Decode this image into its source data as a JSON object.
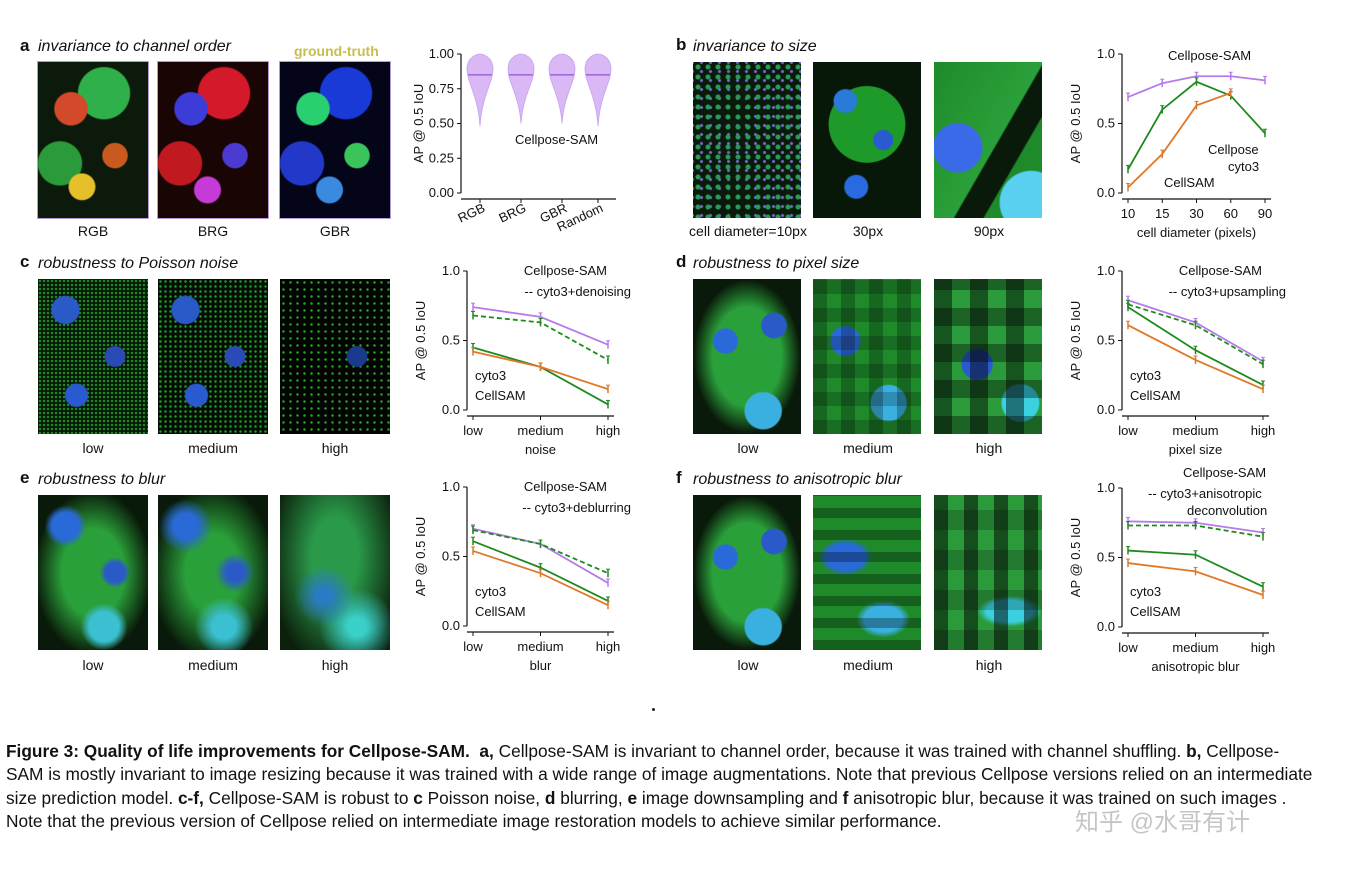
{
  "panels": {
    "a": {
      "letter": "a",
      "title": "invariance to channel order",
      "gt_label": "ground-truth",
      "image_labels": [
        "RGB",
        "BRG",
        "GBR"
      ]
    },
    "b": {
      "letter": "b",
      "title": "invariance to size",
      "image_labels": [
        "cell diameter=10px",
        "30px",
        "90px"
      ]
    },
    "c": {
      "letter": "c",
      "title": "robustness to Poisson noise",
      "image_labels": [
        "low",
        "medium",
        "high"
      ]
    },
    "d": {
      "letter": "d",
      "title": "robustness to pixel size",
      "image_labels": [
        "low",
        "medium",
        "high"
      ]
    },
    "e": {
      "letter": "e",
      "title": "robustness to blur",
      "image_labels": [
        "low",
        "medium",
        "high"
      ]
    },
    "f": {
      "letter": "f",
      "title": "robustness to anisotropic blur",
      "image_labels": [
        "low",
        "medium",
        "high"
      ]
    }
  },
  "colors": {
    "cellposesam": "#b57bea",
    "cyto3": "#1e8a1e",
    "cellsam": "#e0782a",
    "gt": "#c9bd4e"
  },
  "chart_data": [
    {
      "id": "a",
      "type": "violin",
      "ylabel": "AP @ 0.5 IoU",
      "ylim": [
        0,
        1
      ],
      "yticks": [
        "0.00",
        "0.25",
        "0.50",
        "0.75",
        "1.00"
      ],
      "categories": [
        "RGB",
        "BRG",
        "GBR",
        "Random"
      ],
      "series": [
        {
          "name": "Cellpose-SAM",
          "median": [
            0.85,
            0.85,
            0.85,
            0.85
          ],
          "min": [
            0.48,
            0.5,
            0.5,
            0.48
          ],
          "max": [
            1.0,
            1.0,
            1.0,
            1.0
          ]
        }
      ]
    },
    {
      "id": "b",
      "type": "line",
      "xlabel": "cell diameter (pixels)",
      "ylabel": "AP @ 0.5 IoU",
      "ylim": [
        0,
        1
      ],
      "yticks": [
        "0.0",
        "0.5",
        "1.0"
      ],
      "categories": [
        "10",
        "15",
        "30",
        "60",
        "90"
      ],
      "series": [
        {
          "name": "Cellpose-SAM",
          "key": "cellposesam",
          "values": [
            0.69,
            0.79,
            0.84,
            0.84,
            0.81
          ],
          "dashed": false
        },
        {
          "name": "Cellpose cyto3",
          "key": "cyto3",
          "values": [
            0.17,
            0.6,
            0.8,
            0.7,
            0.43
          ],
          "dashed": false
        },
        {
          "name": "CellSAM",
          "key": "cellsam",
          "values": [
            0.04,
            0.28,
            0.63,
            0.72,
            null
          ],
          "dashed": false
        }
      ]
    },
    {
      "id": "c",
      "type": "line",
      "xlabel": "noise",
      "ylabel": "AP @ 0.5 IoU",
      "ylim": [
        0,
        1
      ],
      "yticks": [
        "0.0",
        "0.5",
        "1.0"
      ],
      "categories": [
        "low",
        "medium",
        "high"
      ],
      "series": [
        {
          "name": "Cellpose-SAM",
          "key": "cellposesam",
          "values": [
            0.74,
            0.67,
            0.47
          ],
          "dashed": false
        },
        {
          "name": "-- cyto3+denoising",
          "key": "cyto3",
          "values": [
            0.68,
            0.63,
            0.36
          ],
          "dashed": true
        },
        {
          "name": "cyto3",
          "key": "cyto3",
          "values": [
            0.45,
            0.31,
            0.04
          ],
          "dashed": false
        },
        {
          "name": "CellSAM",
          "key": "cellsam",
          "values": [
            0.42,
            0.31,
            0.15
          ],
          "dashed": false
        }
      ]
    },
    {
      "id": "d",
      "type": "line",
      "xlabel": "pixel size",
      "ylabel": "AP @ 0.5 IoU",
      "ylim": [
        0,
        1
      ],
      "yticks": [
        "0.0",
        "0.5",
        "1.0"
      ],
      "categories": [
        "low",
        "medium",
        "high"
      ],
      "series": [
        {
          "name": "Cellpose-SAM",
          "key": "cellposesam",
          "values": [
            0.79,
            0.63,
            0.35
          ],
          "dashed": false
        },
        {
          "name": "-- cyto3+upsampling",
          "key": "cyto3",
          "values": [
            0.76,
            0.61,
            0.33
          ],
          "dashed": true
        },
        {
          "name": "cyto3",
          "key": "cyto3",
          "values": [
            0.74,
            0.43,
            0.18
          ],
          "dashed": false
        },
        {
          "name": "CellSAM",
          "key": "cellsam",
          "values": [
            0.61,
            0.36,
            0.15
          ],
          "dashed": false
        }
      ]
    },
    {
      "id": "e",
      "type": "line",
      "xlabel": "blur",
      "ylabel": "AP @ 0.5 IoU",
      "ylim": [
        0,
        1
      ],
      "yticks": [
        "0.0",
        "0.5",
        "1.0"
      ],
      "categories": [
        "low",
        "medium",
        "high"
      ],
      "series": [
        {
          "name": "Cellpose-SAM",
          "key": "cellposesam",
          "values": [
            0.7,
            0.59,
            0.31
          ],
          "dashed": false
        },
        {
          "name": "-- cyto3+deblurring",
          "key": "cyto3",
          "values": [
            0.69,
            0.59,
            0.38
          ],
          "dashed": true
        },
        {
          "name": "cyto3",
          "key": "cyto3",
          "values": [
            0.61,
            0.42,
            0.18
          ],
          "dashed": false
        },
        {
          "name": "CellSAM",
          "key": "cellsam",
          "values": [
            0.54,
            0.38,
            0.15
          ],
          "dashed": false
        }
      ]
    },
    {
      "id": "f",
      "type": "line",
      "xlabel": "anisotropic blur",
      "ylabel": "AP @ 0.5 IoU",
      "ylim": [
        0,
        1
      ],
      "yticks": [
        "0.0",
        "0.5",
        "1.0"
      ],
      "categories": [
        "low",
        "medium",
        "high"
      ],
      "series": [
        {
          "name": "Cellpose-SAM",
          "key": "cellposesam",
          "values": [
            0.76,
            0.75,
            0.68
          ],
          "dashed": false
        },
        {
          "name": "-- cyto3+anisotropic deconvolution",
          "key": "cyto3",
          "values": [
            0.73,
            0.73,
            0.65
          ],
          "dashed": true
        },
        {
          "name": "cyto3",
          "key": "cyto3",
          "values": [
            0.55,
            0.52,
            0.29
          ],
          "dashed": false
        },
        {
          "name": "CellSAM",
          "key": "cellsam",
          "values": [
            0.46,
            0.4,
            0.23
          ],
          "dashed": false
        }
      ]
    }
  ],
  "legend_text": {
    "a": [
      "Cellpose-SAM"
    ],
    "b": [
      "Cellpose-SAM",
      "Cellpose",
      "cyto3",
      "CellSAM"
    ],
    "c": [
      "Cellpose-SAM",
      "-- cyto3+denoising",
      "cyto3",
      "CellSAM"
    ],
    "d": [
      "Cellpose-SAM",
      "-- cyto3+upsampling",
      "cyto3",
      "CellSAM"
    ],
    "e": [
      "Cellpose-SAM",
      "-- cyto3+deblurring",
      "cyto3",
      "CellSAM"
    ],
    "f": [
      "Cellpose-SAM",
      "-- cyto3+anisotropic",
      "deconvolution",
      "cyto3",
      "CellSAM"
    ]
  },
  "caption": {
    "head": "Figure 3: Quality of life improvements for Cellpose-SAM.",
    "a": "a,",
    "a_text": " Cellpose-SAM is invariant to channel order, because it was trained with channel shuffling. ",
    "b": "b,",
    "b_text": " Cellpose-SAM is mostly invariant to image resizing because it was trained with a wide range of image augmentations. Note that previous Cellpose versions relied on an intermediate size prediction model. ",
    "cf": "c-f,",
    "cf_text": " Cellpose-SAM is robust to ",
    "c": "c",
    "c_text": " Poisson noise, ",
    "d": "d",
    "d_text": " blurring, ",
    "e": "e",
    "e_text": " image downsampling and ",
    "f": "f",
    "f_text": " anisotropic blur, because it was trained on such images . Note that the previous version of Cellpose relied on intermediate image restoration models to achieve similar performance."
  },
  "watermark": "知乎 @水哥有计"
}
